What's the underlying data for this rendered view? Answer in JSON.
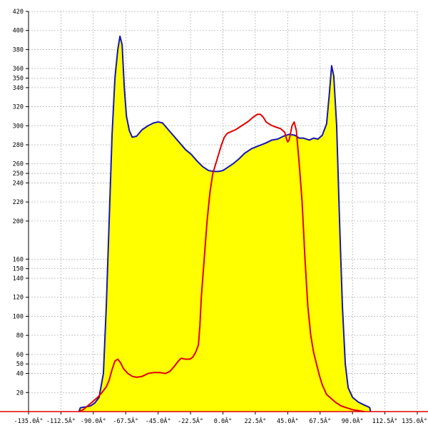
{
  "chart_data": {
    "type": "area",
    "title": "",
    "xlabel": "",
    "ylabel": "",
    "xlim": [
      -135,
      135
    ],
    "ylim": [
      0,
      420
    ],
    "grid": true,
    "x_tick_values": [
      -135,
      -112.5,
      -90,
      -67.5,
      -45,
      -22.5,
      0,
      22.5,
      45,
      67.5,
      90,
      112.5,
      135
    ],
    "x_tick_labels": [
      "-135.0Â°",
      "-112.5Â°",
      "-90.0Â°",
      "-67.5Â°",
      "-45.0Â°",
      "-22.5Â°",
      "0.0Â°",
      "22.5Â°",
      "45.0Â°",
      "67.5Â°",
      "90.0Â°",
      "112.5Â°",
      "135.0Â°"
    ],
    "y_tick_values": [
      20,
      40,
      50,
      60,
      80,
      100,
      120,
      140,
      150,
      160,
      200,
      220,
      240,
      250,
      260,
      280,
      300,
      320,
      340,
      350,
      360,
      380,
      400,
      420
    ],
    "y_tick_labels": [
      "20",
      "40",
      "50",
      "60",
      "80",
      "100",
      "120",
      "140",
      "150",
      "160",
      "200",
      "220",
      "240",
      "250",
      "260",
      "280",
      "300",
      "320",
      "340",
      "350",
      "360",
      "380",
      "400",
      "420"
    ],
    "baseline": {
      "value": 0,
      "color": "#e00000"
    },
    "series": [
      {
        "color": "#1414b4",
        "fill": "#ffff00",
        "points": [
          [
            -100,
            0
          ],
          [
            -99,
            4
          ],
          [
            -95,
            5
          ],
          [
            -92,
            6
          ],
          [
            -89,
            9
          ],
          [
            -86,
            15
          ],
          [
            -83,
            40
          ],
          [
            -81,
            110
          ],
          [
            -79,
            200
          ],
          [
            -77,
            290
          ],
          [
            -75,
            350
          ],
          [
            -73,
            380
          ],
          [
            -71.5,
            394
          ],
          [
            -70,
            385
          ],
          [
            -68.5,
            340
          ],
          [
            -67,
            310
          ],
          [
            -65,
            295
          ],
          [
            -63,
            288
          ],
          [
            -60,
            289
          ],
          [
            -56,
            296
          ],
          [
            -52,
            300
          ],
          [
            -48,
            303
          ],
          [
            -45,
            304
          ],
          [
            -42,
            303
          ],
          [
            -38,
            296
          ],
          [
            -34,
            289
          ],
          [
            -30,
            282
          ],
          [
            -26,
            275
          ],
          [
            -22,
            270
          ],
          [
            -18,
            263
          ],
          [
            -14,
            257
          ],
          [
            -10,
            253
          ],
          [
            -6,
            252
          ],
          [
            -3,
            252
          ],
          [
            0,
            253
          ],
          [
            3,
            256
          ],
          [
            7,
            260
          ],
          [
            11,
            265
          ],
          [
            15,
            271
          ],
          [
            20,
            276
          ],
          [
            25,
            279
          ],
          [
            30,
            282
          ],
          [
            34,
            285
          ],
          [
            38,
            286
          ],
          [
            42,
            289
          ],
          [
            46,
            291
          ],
          [
            50,
            290
          ],
          [
            53,
            287
          ],
          [
            56,
            287
          ],
          [
            60,
            285
          ],
          [
            63,
            287
          ],
          [
            66,
            286
          ],
          [
            69,
            290
          ],
          [
            72,
            302
          ],
          [
            74,
            335
          ],
          [
            75.5,
            363
          ],
          [
            77,
            352
          ],
          [
            79,
            300
          ],
          [
            81,
            200
          ],
          [
            83,
            110
          ],
          [
            85,
            50
          ],
          [
            87,
            25
          ],
          [
            90,
            15
          ],
          [
            94,
            10
          ],
          [
            98,
            7
          ],
          [
            101,
            5
          ],
          [
            102,
            4
          ],
          [
            102.5,
            0
          ]
        ]
      },
      {
        "color": "#e00000",
        "fill": "",
        "points": [
          [
            -100,
            0
          ],
          [
            -97,
            2
          ],
          [
            -94,
            6
          ],
          [
            -90,
            11
          ],
          [
            -87,
            15
          ],
          [
            -84,
            20
          ],
          [
            -81,
            26
          ],
          [
            -79,
            33
          ],
          [
            -77,
            44
          ],
          [
            -75,
            53
          ],
          [
            -73,
            55
          ],
          [
            -71,
            51
          ],
          [
            -69,
            45
          ],
          [
            -66,
            40
          ],
          [
            -63,
            37
          ],
          [
            -60,
            36
          ],
          [
            -56,
            37
          ],
          [
            -52,
            40
          ],
          [
            -48,
            41
          ],
          [
            -44,
            41
          ],
          [
            -40,
            40
          ],
          [
            -37,
            42
          ],
          [
            -34,
            47
          ],
          [
            -31,
            53
          ],
          [
            -29,
            56
          ],
          [
            -26,
            55
          ],
          [
            -23,
            55
          ],
          [
            -21,
            57
          ],
          [
            -19,
            62
          ],
          [
            -17,
            70
          ],
          [
            -16,
            90
          ],
          [
            -15,
            120
          ],
          [
            -13,
            160
          ],
          [
            -11,
            200
          ],
          [
            -9,
            230
          ],
          [
            -7,
            250
          ],
          [
            -5,
            260
          ],
          [
            -3,
            270
          ],
          [
            -1,
            280
          ],
          [
            1,
            288
          ],
          [
            3,
            292
          ],
          [
            6,
            294
          ],
          [
            9,
            296
          ],
          [
            12,
            299
          ],
          [
            15,
            302
          ],
          [
            18,
            305
          ],
          [
            21,
            309
          ],
          [
            24,
            312
          ],
          [
            26,
            312
          ],
          [
            28,
            309
          ],
          [
            30,
            304
          ],
          [
            33,
            301
          ],
          [
            36,
            299
          ],
          [
            40,
            297
          ],
          [
            43,
            293
          ],
          [
            44,
            287
          ],
          [
            45,
            283
          ],
          [
            46,
            285
          ],
          [
            48,
            300
          ],
          [
            49.5,
            304
          ],
          [
            51,
            295
          ],
          [
            53,
            260
          ],
          [
            55,
            220
          ],
          [
            57,
            160
          ],
          [
            59,
            110
          ],
          [
            61,
            80
          ],
          [
            63,
            62
          ],
          [
            65,
            50
          ],
          [
            67,
            38
          ],
          [
            69,
            28
          ],
          [
            72,
            18
          ],
          [
            75,
            14
          ],
          [
            78,
            10
          ],
          [
            82,
            6
          ],
          [
            86,
            4
          ],
          [
            90,
            2
          ],
          [
            94,
            1
          ],
          [
            98,
            0
          ]
        ]
      }
    ]
  }
}
